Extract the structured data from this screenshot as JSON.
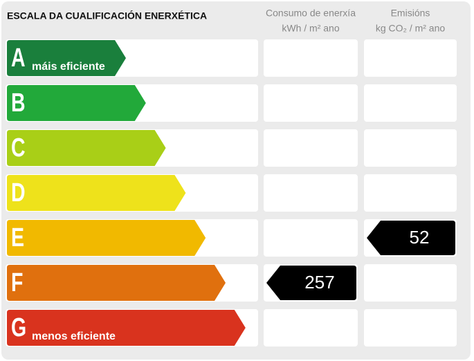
{
  "header": {
    "title": "ESCALA DA CUALIFICACIÓN ENERXÉTICA"
  },
  "columns": [
    {
      "title": "Consumo de enerxía",
      "unit": "kWh / m² ano",
      "rating": "F",
      "value": 257
    },
    {
      "title": "Emisións",
      "unit": "kg CO₂ / m² ano",
      "rating": "E",
      "value": 52
    }
  ],
  "rows": [
    {
      "letter": "A",
      "label": "máis eficiente",
      "color": "#1a7f3c"
    },
    {
      "letter": "B",
      "color": "#22a93a"
    },
    {
      "letter": "C",
      "color": "#a9cf17"
    },
    {
      "letter": "D",
      "color": "#eee21b"
    },
    {
      "letter": "E",
      "color": "#f1b900"
    },
    {
      "letter": "F",
      "color": "#e0700e"
    },
    {
      "letter": "G",
      "label": "menos eficiente",
      "color": "#d9331e"
    }
  ]
}
